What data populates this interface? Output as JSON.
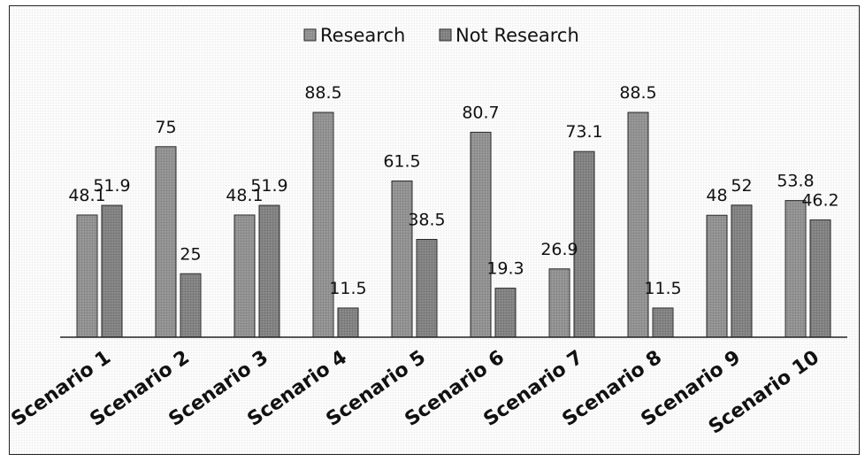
{
  "chart_data": {
    "type": "bar",
    "categories": [
      "Scenario 1",
      "Scenario 2",
      "Scenario 3",
      "Scenario 4",
      "Scenario 5",
      "Scenario 6",
      "Scenario 7",
      "Scenario 8",
      "Scenario 9",
      "Scenario 10"
    ],
    "series": [
      {
        "name": "Research",
        "values": [
          48.1,
          75,
          48.1,
          88.5,
          61.5,
          80.7,
          26.9,
          88.5,
          48,
          53.8
        ],
        "labels": [
          "48.1",
          "75",
          "48.1",
          "88.5",
          "61.5",
          "80.7",
          "26.9",
          "88.5",
          "48",
          "53.8"
        ]
      },
      {
        "name": "Not Research",
        "values": [
          51.9,
          25,
          51.9,
          11.5,
          38.5,
          19.3,
          73.1,
          11.5,
          52,
          46.2
        ],
        "labels": [
          "51.9",
          "25",
          "51.9",
          "11.5",
          "38.5",
          "19.3",
          "73.1",
          "11.5",
          "52",
          "46.2"
        ]
      }
    ],
    "ylim": [
      0,
      100
    ],
    "grid": false,
    "legend": "top-center",
    "colors": {
      "Research": "#8a8a8a",
      "Not Research": "#7a7a7a"
    }
  }
}
